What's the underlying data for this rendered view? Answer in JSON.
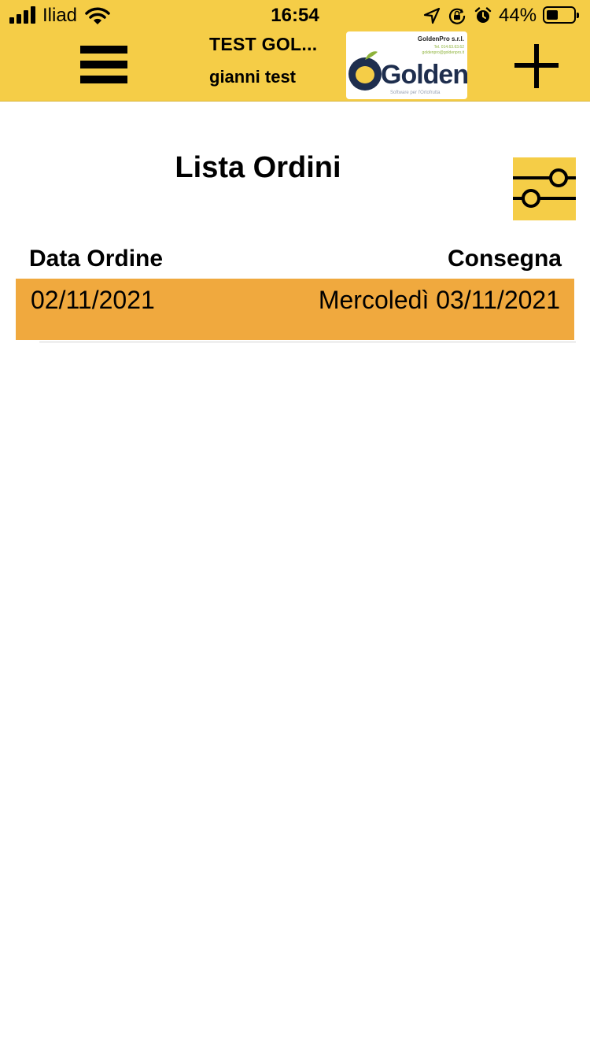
{
  "status_bar": {
    "carrier": "Iliad",
    "time": "16:54",
    "battery_percent": "44%",
    "battery_level": 0.44,
    "icons": [
      "signal-icon",
      "wifi-icon",
      "location-arrow-icon",
      "rotation-lock-icon",
      "alarm-icon",
      "battery-icon"
    ]
  },
  "header": {
    "app_title": "TEST GOL...",
    "user_name": "gianni test",
    "logo": {
      "company": "GoldenPro s.r.l.",
      "tel": "Tel. 014.63.63.62",
      "email": "goldenpro@goldenpro.it",
      "wordmark": "Golden",
      "tagline": "Software per l'Ortofrutta"
    },
    "menu_icon": "hamburger-menu-icon",
    "add_icon": "plus-icon"
  },
  "page": {
    "title": "Lista Ordini",
    "filter_icon": "filter-sliders-icon"
  },
  "orders_table": {
    "columns": [
      "Data Ordine",
      "Consegna"
    ],
    "rows": [
      {
        "order_date": "02/11/2021",
        "delivery": "Mercoledì 03/11/2021"
      }
    ]
  },
  "colors": {
    "header_bg": "#f5cd47",
    "row_highlight": "#f0a93e",
    "logo_navy": "#1e2e4e",
    "logo_green": "#8db23a"
  }
}
